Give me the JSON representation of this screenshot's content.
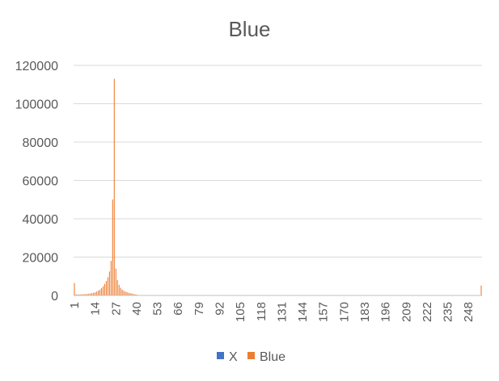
{
  "chart_data": {
    "type": "bar",
    "title": "Blue",
    "xlabel": "",
    "ylabel": "",
    "ylim": [
      0,
      120000
    ],
    "yticks": [
      "0",
      "20000",
      "40000",
      "60000",
      "80000",
      "100000",
      "120000"
    ],
    "xticks": [
      "1",
      "14",
      "27",
      "40",
      "53",
      "66",
      "79",
      "92",
      "105",
      "118",
      "131",
      "144",
      "157",
      "170",
      "183",
      "196",
      "209",
      "222",
      "235",
      "248"
    ],
    "x_range": [
      1,
      256
    ],
    "grid": true,
    "legend_position": "bottom",
    "colors": {
      "X": "#4472C4",
      "Blue": "#ED7D31",
      "grid": "#D9D9D9",
      "text": "#595959"
    },
    "series": [
      {
        "name": "X",
        "values": []
      },
      {
        "name": "Blue",
        "points": [
          [
            1,
            6500
          ],
          [
            2,
            600
          ],
          [
            3,
            500
          ],
          [
            4,
            500
          ],
          [
            5,
            550
          ],
          [
            6,
            600
          ],
          [
            7,
            650
          ],
          [
            8,
            700
          ],
          [
            9,
            800
          ],
          [
            10,
            900
          ],
          [
            11,
            1000
          ],
          [
            12,
            1200
          ],
          [
            13,
            1400
          ],
          [
            14,
            1600
          ],
          [
            15,
            2000
          ],
          [
            16,
            2500
          ],
          [
            17,
            3000
          ],
          [
            18,
            3800
          ],
          [
            19,
            4800
          ],
          [
            20,
            6000
          ],
          [
            21,
            7500
          ],
          [
            22,
            9500
          ],
          [
            23,
            12500
          ],
          [
            24,
            18000
          ],
          [
            25,
            50000
          ],
          [
            26,
            113000
          ],
          [
            27,
            14000
          ],
          [
            28,
            8000
          ],
          [
            29,
            5500
          ],
          [
            30,
            4000
          ],
          [
            31,
            3000
          ],
          [
            32,
            2400
          ],
          [
            33,
            2000
          ],
          [
            34,
            1700
          ],
          [
            35,
            1400
          ],
          [
            36,
            1200
          ],
          [
            37,
            1000
          ],
          [
            38,
            800
          ],
          [
            39,
            600
          ],
          [
            40,
            400
          ],
          [
            41,
            250
          ],
          [
            42,
            150
          ],
          [
            43,
            100
          ],
          [
            44,
            80
          ],
          [
            45,
            60
          ],
          [
            46,
            50
          ],
          [
            47,
            40
          ],
          [
            48,
            30
          ],
          [
            49,
            25
          ],
          [
            50,
            20
          ],
          [
            256,
            5200
          ]
        ]
      }
    ]
  }
}
